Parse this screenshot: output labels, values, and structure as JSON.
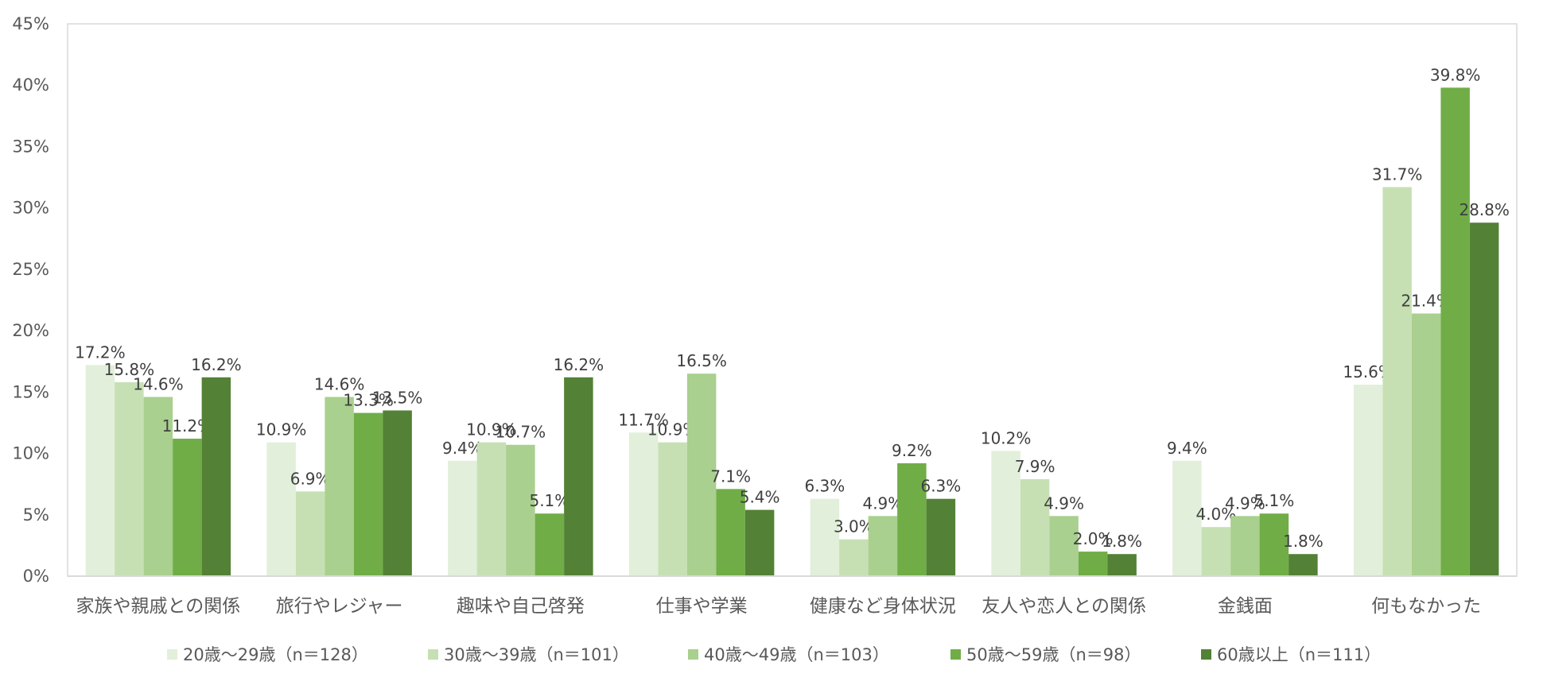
{
  "chart_data": {
    "type": "bar",
    "categories": [
      "家族や親戚との関係",
      "旅行やレジャー",
      "趣味や自己啓発",
      "仕事や学業",
      "健康など身体状況",
      "友人や恋人との関係",
      "金銭面",
      "何もなかった"
    ],
    "series": [
      {
        "name": "20歳〜29歳（n＝128）",
        "values": [
          17.2,
          10.9,
          9.4,
          11.7,
          6.3,
          10.2,
          9.4,
          15.6
        ],
        "color": "#e2efda"
      },
      {
        "name": "30歳〜39歳（n＝101）",
        "values": [
          15.8,
          6.9,
          10.9,
          10.9,
          3.0,
          7.9,
          4.0,
          31.7
        ],
        "color": "#c6e0b4"
      },
      {
        "name": "40歳〜49歳（n＝103）",
        "values": [
          14.6,
          14.6,
          10.7,
          16.5,
          4.9,
          4.9,
          4.9,
          21.4
        ],
        "color": "#a9d08e"
      },
      {
        "name": "50歳〜59歳（n＝98）",
        "values": [
          11.2,
          13.3,
          5.1,
          7.1,
          9.2,
          2.0,
          5.1,
          39.8
        ],
        "color": "#70ad47"
      },
      {
        "name": "60歳以上（n＝111）",
        "values": [
          16.2,
          13.5,
          16.2,
          5.4,
          6.3,
          1.8,
          1.8,
          28.8
        ],
        "color": "#538135"
      }
    ],
    "ylim": [
      0,
      45
    ],
    "yticks": [
      0,
      5,
      10,
      15,
      20,
      25,
      30,
      35,
      40,
      45
    ],
    "ytick_labels": [
      "0%",
      "5%",
      "10%",
      "15%",
      "20%",
      "25%",
      "30%",
      "35%",
      "40%",
      "45%"
    ],
    "value_suffix": "%",
    "data_labels": true,
    "grid": false,
    "legend_position": "bottom",
    "title": "",
    "xlabel": "",
    "ylabel": ""
  }
}
